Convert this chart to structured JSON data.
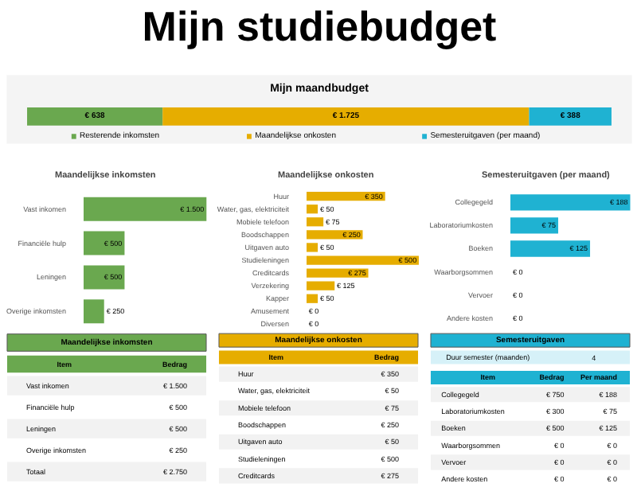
{
  "chart_data": [
    {
      "type": "bar",
      "title": "Mijn studiebudget",
      "subtitle": "Mijn maandbudget",
      "orientation": "horizontal",
      "stacked": true,
      "categories": [
        null
      ],
      "legend": "bottom",
      "series": [
        {
          "name": "Resterende inkomsten",
          "color": "#6aa84f",
          "values": [
            638
          ],
          "value_labels": [
            "€ 638"
          ]
        },
        {
          "name": "Maandelijkse onkosten",
          "color": "#e6ad00",
          "values": [
            1725
          ],
          "value_labels": [
            "€ 1.725"
          ]
        },
        {
          "name": "Semesteruitgaven (per maand)",
          "color": "#1fb2d2",
          "values": [
            388
          ],
          "value_labels": [
            "€ 388"
          ]
        }
      ]
    },
    {
      "type": "bar",
      "title": "Maandelijkse inkomsten",
      "orientation": "horizontal",
      "categories": [
        "Vast inkomen",
        "Financiële hulp",
        "Leningen",
        "Overige inkomsten"
      ],
      "series": [
        {
          "color": "#6aa84f",
          "values": [
            1500,
            500,
            500,
            250
          ],
          "value_labels": [
            "€ 1.500",
            "€ 500",
            "€ 500",
            "€ 250"
          ]
        }
      ]
    },
    {
      "type": "bar",
      "title": "Maandelijkse onkosten",
      "orientation": "horizontal",
      "categories": [
        "Huur",
        "Water, gas, elektriciteit",
        "Mobiele telefoon",
        "Boodschappen",
        "Uitgaven auto",
        "Studieleningen",
        "Creditcards",
        "Verzekering",
        "Kapper",
        "Amusement",
        "Diversen"
      ],
      "series": [
        {
          "color": "#e6ad00",
          "values": [
            350,
            50,
            75,
            250,
            50,
            500,
            275,
            125,
            50,
            0,
            0
          ],
          "value_labels": [
            "€ 350",
            "€ 50",
            "€ 75",
            "€ 250",
            "€ 50",
            "€ 500",
            "€ 275",
            "€ 125",
            "€ 50",
            "€ 0",
            "€ 0"
          ]
        }
      ]
    },
    {
      "type": "bar",
      "title": "Semesteruitgaven (per maand)",
      "orientation": "horizontal",
      "categories": [
        "Collegegeld",
        "Laboratoriumkosten",
        "Boeken",
        "Waarborgsommen",
        "Vervoer",
        "Andere kosten"
      ],
      "series": [
        {
          "color": "#1fb2d2",
          "values": [
            188,
            75,
            125,
            0,
            0,
            0
          ],
          "value_labels": [
            "€ 188",
            "€ 75",
            "€ 125",
            "€ 0",
            "€ 0",
            "€ 0"
          ]
        }
      ]
    },
    {
      "type": "other",
      "title": "Maandelijkse inkomsten",
      "colors": [
        "#6aa84f"
      ],
      "categories": [
        "Item",
        "Bedrag"
      ],
      "y_categories": [
        "Vast inkomen",
        "Financiële hulp",
        "Leningen",
        "Overige inkomsten",
        "Totaal"
      ],
      "cell_labels": [
        [
          "€ 1.500"
        ],
        [
          "€ 500"
        ],
        [
          "€ 500"
        ],
        [
          "€ 250"
        ],
        [
          "€ 2.750"
        ]
      ]
    },
    {
      "type": "other",
      "title": "Maandelijkse onkosten",
      "colors": [
        "#e6ad00"
      ],
      "categories": [
        "Item",
        "Bedrag"
      ],
      "y_categories": [
        "Huur",
        "Water, gas, elektriciteit",
        "Mobiele telefoon",
        "Boodschappen",
        "Uitgaven auto",
        "Studieleningen",
        "Creditcards"
      ],
      "cell_labels": [
        [
          "€ 350"
        ],
        [
          "€ 50"
        ],
        [
          "€ 75"
        ],
        [
          "€ 250"
        ],
        [
          "€ 50"
        ],
        [
          "€ 500"
        ],
        [
          "€ 275"
        ]
      ]
    },
    {
      "type": "other",
      "title": "Semesteruitgaven",
      "colors": [
        "#1fb2d2"
      ],
      "annotations": [
        "Duur semester (maanden)",
        "4"
      ],
      "categories": [
        "Item",
        "Bedrag",
        "Per maand"
      ],
      "y_categories": [
        "Collegegeld",
        "Laboratoriumkosten",
        "Boeken",
        "Waarborgsommen",
        "Vervoer",
        "Andere kosten"
      ],
      "cell_labels": [
        [
          "€ 750",
          "€ 188"
        ],
        [
          "€ 300",
          "€ 75"
        ],
        [
          "€ 500",
          "€ 125"
        ],
        [
          "€ 0",
          "€ 0"
        ],
        [
          "€ 0",
          "€ 0"
        ],
        [
          "€ 0",
          "€ 0"
        ]
      ]
    }
  ]
}
